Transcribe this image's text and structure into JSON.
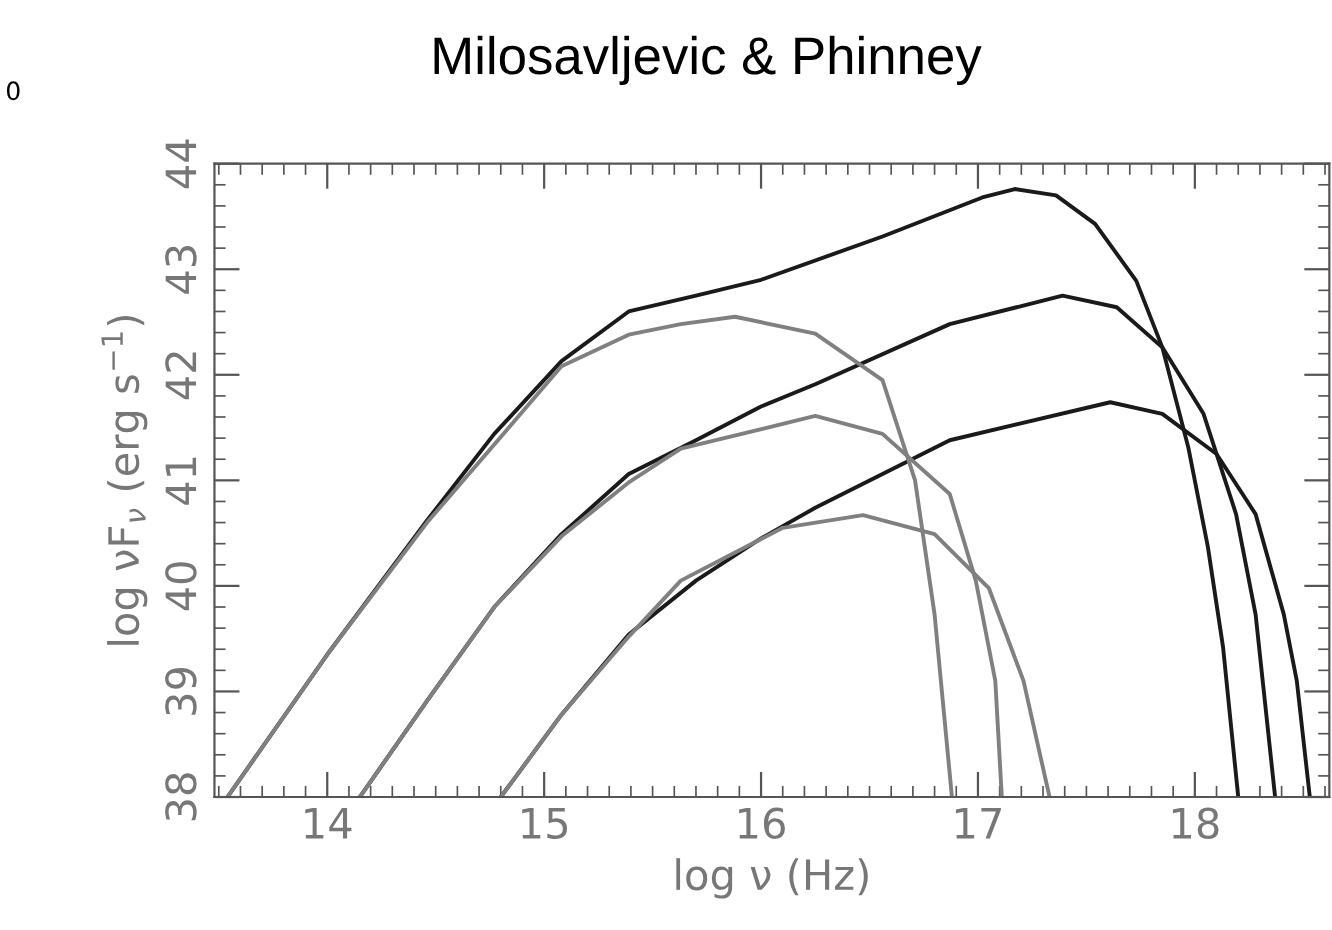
{
  "chart_data": {
    "type": "line",
    "title": "Milosavljevic & Phinney",
    "xlabel": "log ν (Hz)",
    "ylabel": "log νF$_{ν}$ (erg s$^{−1}$)",
    "annotations": [
      "0"
    ],
    "xlim": [
      13.48,
      18.62
    ],
    "ylim": [
      38,
      44
    ],
    "xticks": [
      14,
      15,
      16,
      17,
      18,
      {
        "value": 13.5,
        "label": null
      },
      {
        "value": 13.6,
        "label": null
      },
      {
        "value": 13.7,
        "label": null
      },
      {
        "value": 13.8,
        "label": null
      },
      {
        "value": 13.9,
        "label": null
      },
      {
        "value": 14.1,
        "label": null
      },
      {
        "value": 14.2,
        "label": null
      },
      {
        "value": 14.3,
        "label": null
      },
      {
        "value": 14.4,
        "label": null
      },
      {
        "value": 14.5,
        "label": null
      },
      {
        "value": 14.6,
        "label": null
      },
      {
        "value": 14.7,
        "label": null
      },
      {
        "value": 14.8,
        "label": null
      },
      {
        "value": 14.9,
        "label": null
      },
      {
        "value": 15.1,
        "label": null
      },
      {
        "value": 15.2,
        "label": null
      },
      {
        "value": 15.3,
        "label": null
      },
      {
        "value": 15.4,
        "label": null
      },
      {
        "value": 15.5,
        "label": null
      },
      {
        "value": 15.6,
        "label": null
      },
      {
        "value": 15.7,
        "label": null
      },
      {
        "value": 15.8,
        "label": null
      },
      {
        "value": 15.9,
        "label": null
      },
      {
        "value": 16.1,
        "label": null
      },
      {
        "value": 16.2,
        "label": null
      },
      {
        "value": 16.3,
        "label": null
      },
      {
        "value": 16.4,
        "label": null
      },
      {
        "value": 16.5,
        "label": null
      },
      {
        "value": 16.6,
        "label": null
      },
      {
        "value": 16.7,
        "label": null
      },
      {
        "value": 16.8,
        "label": null
      },
      {
        "value": 16.9,
        "label": null
      },
      {
        "value": 17.1,
        "label": null
      },
      {
        "value": 17.2,
        "label": null
      },
      {
        "value": 17.3,
        "label": null
      },
      {
        "value": 17.4,
        "label": null
      },
      {
        "value": 17.5,
        "label": null
      },
      {
        "value": 17.6,
        "label": null
      },
      {
        "value": 17.7,
        "label": null
      },
      {
        "value": 17.8,
        "label": null
      },
      {
        "value": 17.9,
        "label": null
      },
      {
        "value": 18.1,
        "label": null
      },
      {
        "value": 18.2,
        "label": null
      },
      {
        "value": 18.3,
        "label": null
      },
      {
        "value": 18.4,
        "label": null
      },
      {
        "value": 18.5,
        "label": null
      },
      {
        "value": 18.6,
        "label": null
      }
    ],
    "yticks": [
      38,
      39,
      40,
      41,
      42,
      43,
      44,
      {
        "value": 38.2,
        "label": null
      },
      {
        "value": 38.4,
        "label": null
      },
      {
        "value": 38.6,
        "label": null
      },
      {
        "value": 38.8,
        "label": null
      },
      {
        "value": 39.2,
        "label": null
      },
      {
        "value": 39.4,
        "label": null
      },
      {
        "value": 39.6,
        "label": null
      },
      {
        "value": 39.8,
        "label": null
      },
      {
        "value": 40.2,
        "label": null
      },
      {
        "value": 40.4,
        "label": null
      },
      {
        "value": 40.6,
        "label": null
      },
      {
        "value": 40.8,
        "label": null
      },
      {
        "value": 41.2,
        "label": null
      },
      {
        "value": 41.4,
        "label": null
      },
      {
        "value": 41.6,
        "label": null
      },
      {
        "value": 41.8,
        "label": null
      },
      {
        "value": 42.2,
        "label": null
      },
      {
        "value": 42.4,
        "label": null
      },
      {
        "value": 42.6,
        "label": null
      },
      {
        "value": 42.8,
        "label": null
      },
      {
        "value": 43.2,
        "label": null
      },
      {
        "value": 43.4,
        "label": null
      },
      {
        "value": 43.6,
        "label": null
      },
      {
        "value": 43.8,
        "label": null
      }
    ],
    "series": [
      {
        "color": "#1a1a1a",
        "x": [
          13.54,
          14.0,
          14.46,
          14.77,
          15.08,
          15.39,
          15.7,
          16.0,
          16.56,
          17.02,
          17.17,
          17.36,
          17.54,
          17.73,
          17.85,
          17.97,
          18.06,
          18.13,
          18.2
        ],
        "values": [
          38.0,
          39.35,
          40.62,
          41.44,
          42.13,
          42.6,
          42.75,
          42.9,
          43.31,
          43.68,
          43.76,
          43.7,
          43.43,
          42.89,
          42.26,
          41.31,
          40.37,
          39.42,
          38.0
        ]
      },
      {
        "color": "#1a1a1a",
        "x": [
          14.15,
          14.46,
          14.77,
          15.08,
          15.39,
          15.7,
          16.0,
          16.25,
          16.87,
          17.39,
          17.64,
          17.85,
          18.04,
          18.19,
          18.28,
          18.37
        ],
        "values": [
          38.0,
          38.91,
          39.8,
          40.49,
          41.06,
          41.38,
          41.7,
          41.91,
          42.48,
          42.75,
          42.64,
          42.26,
          41.63,
          40.68,
          39.73,
          38.0
        ]
      },
      {
        "color": "#1a1a1a",
        "x": [
          14.8,
          15.08,
          15.39,
          15.7,
          16.0,
          16.25,
          16.87,
          17.61,
          17.85,
          18.1,
          18.28,
          18.41,
          18.47,
          18.53
        ],
        "values": [
          38.0,
          38.78,
          39.54,
          40.05,
          40.45,
          40.74,
          41.38,
          41.74,
          41.63,
          41.25,
          40.68,
          39.73,
          39.1,
          38.0
        ]
      },
      {
        "color": "#808080",
        "x": [
          13.54,
          14.0,
          14.46,
          15.08,
          15.39,
          15.63,
          15.88,
          16.25,
          16.56,
          16.71,
          16.8,
          16.88
        ],
        "values": [
          38.0,
          39.35,
          40.6,
          42.08,
          42.38,
          42.48,
          42.55,
          42.39,
          41.95,
          41.0,
          39.73,
          38.0
        ]
      },
      {
        "color": "#808080",
        "x": [
          14.15,
          14.46,
          14.77,
          15.08,
          15.39,
          15.63,
          16.25,
          16.56,
          16.87,
          16.99,
          17.08,
          17.11
        ],
        "values": [
          38.0,
          38.91,
          39.8,
          40.47,
          40.98,
          41.3,
          41.61,
          41.44,
          40.87,
          40.05,
          39.1,
          38.0
        ]
      },
      {
        "color": "#808080",
        "x": [
          14.8,
          15.08,
          15.39,
          15.63,
          16.1,
          16.47,
          16.8,
          17.05,
          17.21,
          17.33
        ],
        "values": [
          38.0,
          38.78,
          39.52,
          40.05,
          40.55,
          40.67,
          40.49,
          39.98,
          39.1,
          38.0
        ]
      }
    ]
  }
}
